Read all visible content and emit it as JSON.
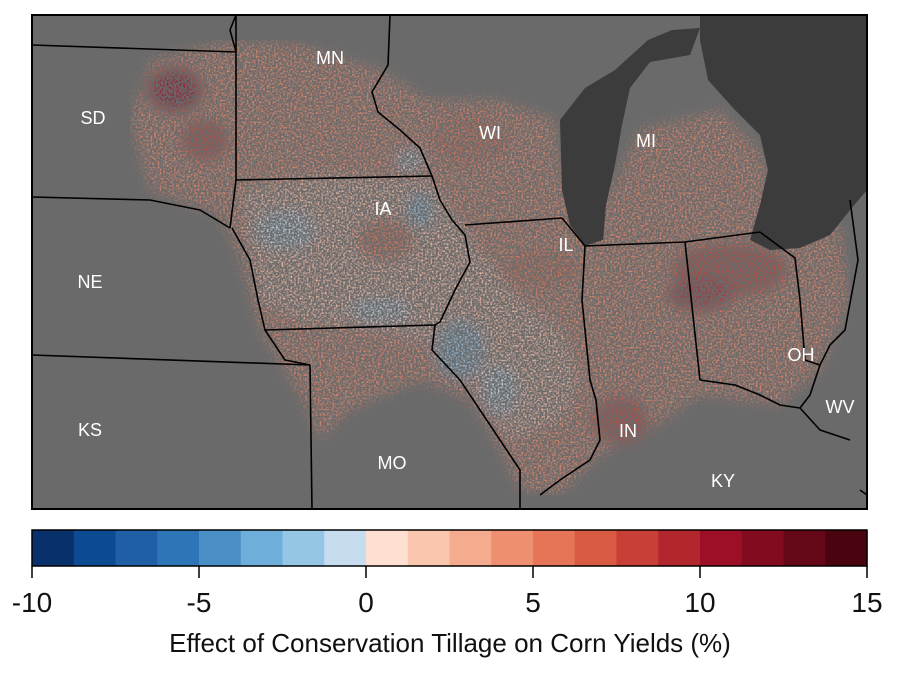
{
  "map": {
    "states": [
      "SD",
      "MN",
      "WI",
      "MI",
      "IA",
      "IL",
      "NE",
      "KS",
      "MO",
      "IN",
      "OH",
      "KY",
      "WV"
    ]
  },
  "colorbar": {
    "title": "Effect of Conservation Tillage on Corn Yields (%)",
    "ticks": [
      "-10",
      "-5",
      "0",
      "5",
      "10",
      "15"
    ],
    "range": [
      -10,
      15
    ],
    "bins": 20,
    "colors": [
      "#08306b",
      "#0d4a94",
      "#1f5fa8",
      "#2e75b8",
      "#4a90c6",
      "#6eaedb",
      "#96c6e6",
      "#c6ddef",
      "#fde0d0",
      "#fac6ad",
      "#f5ab8e",
      "#ee9070",
      "#e57556",
      "#d85a42",
      "#c83f35",
      "#b3262e",
      "#9c0f26",
      "#830b20",
      "#660818",
      "#4a0410"
    ]
  },
  "colors": {
    "background": "#ffffff",
    "land": "#6a6a6a",
    "water": "#3c3c3c",
    "border": "#000000"
  }
}
